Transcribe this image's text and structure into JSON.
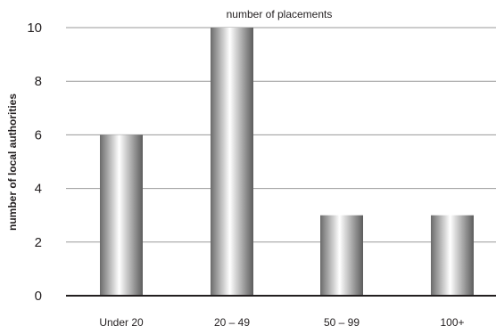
{
  "chart_data": {
    "type": "bar",
    "title": "number of placements",
    "xlabel": "",
    "ylabel": "number of local authorities",
    "categories": [
      "Under 20",
      "20 – 49",
      "50 – 99",
      "100+"
    ],
    "values": [
      6,
      10,
      3,
      3
    ],
    "ylim": [
      0,
      10
    ],
    "yticks": [
      0,
      2,
      4,
      6,
      8,
      10
    ],
    "grid": true,
    "legend": "none",
    "colors": {
      "bar_dark": "#6b6b6b",
      "bar_light": "#ffffff",
      "grid": "#9a9a9a",
      "axis": "#231f20",
      "text": "#231f20"
    }
  }
}
